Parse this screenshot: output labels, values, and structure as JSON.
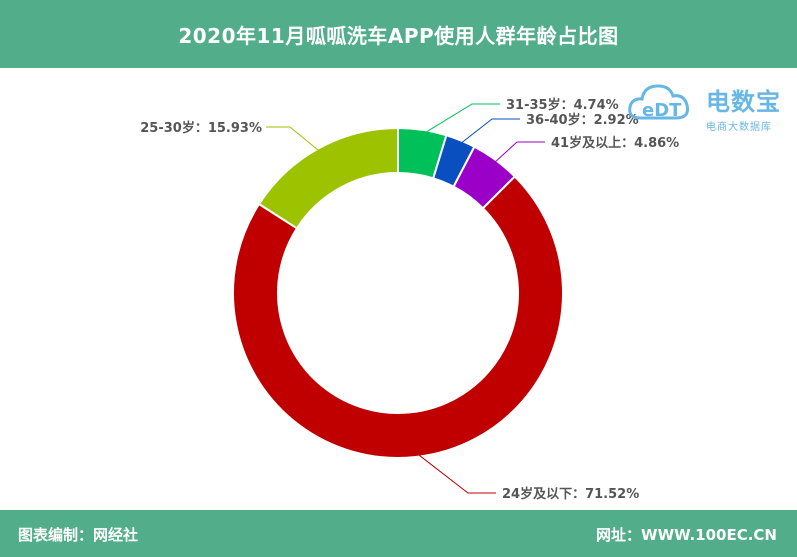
{
  "header": {
    "title": "2020年11月呱呱洗车APP使用人群年龄占比图"
  },
  "footer": {
    "source": "图表编制：网经社",
    "site": "网址：WWW.100EC.CN"
  },
  "watermark": {
    "logo_text": "eDT",
    "name": "电数宝",
    "subtitle": "电商大数据库"
  },
  "chart_data": {
    "type": "pie",
    "donut": true,
    "title": "2020年11月呱呱洗车APP使用人群年龄占比图",
    "legend": "none",
    "slices": [
      {
        "label": "31-35岁",
        "value": 4.74,
        "display": "31-35岁：4.74%",
        "color": "#00c05a"
      },
      {
        "label": "36-40岁",
        "value": 2.92,
        "display": "36-40岁：2.92%",
        "color": "#0a4fbf"
      },
      {
        "label": "41岁及以上",
        "value": 4.86,
        "display": "41岁及以上：4.86%",
        "color": "#9b00c8"
      },
      {
        "label": "24岁及以下",
        "value": 71.52,
        "display": "24岁及以下：71.52%",
        "color": "#c00000"
      },
      {
        "label": "25-30岁",
        "value": 15.93,
        "display": "25-30岁：15.93%",
        "color": "#9dc300"
      }
    ]
  }
}
